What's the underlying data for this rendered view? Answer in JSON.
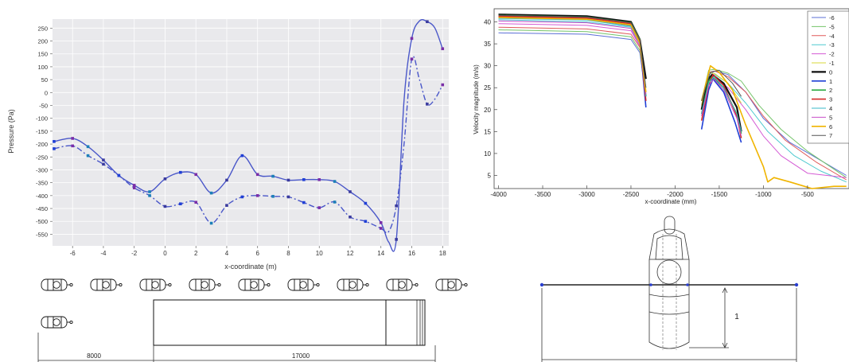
{
  "chart_data": [
    {
      "type": "line",
      "xlabel": "x-coordinate (m)",
      "ylabel": "Pressure (Pa)",
      "xlim": [
        -7.3,
        18.4
      ],
      "ylim": [
        -595,
        285
      ],
      "xticks": [
        "-6",
        "-4",
        "-2",
        "0",
        "2",
        "4",
        "6",
        "8",
        "10",
        "12",
        "14",
        "16",
        "18"
      ],
      "yticks": [
        "250",
        "200",
        "150",
        "100",
        "50",
        "0",
        "-50",
        "-100",
        "-150",
        "-200",
        "-250",
        "-300",
        "-350",
        "-400",
        "-450",
        "-500",
        "-550"
      ],
      "grid": true,
      "series": [
        {
          "style": "solid",
          "color": "#4a57c9",
          "x": [
            -7.2,
            -6,
            -5,
            -4,
            -3,
            -2,
            -1,
            0,
            1,
            2,
            3,
            4,
            5,
            6,
            7,
            8,
            9,
            10,
            11,
            12,
            13,
            14,
            14.5,
            15,
            15.5,
            16,
            16.5,
            17,
            17.5,
            18
          ],
          "y": [
            -190,
            -178,
            -210,
            -262,
            -322,
            -360,
            -385,
            -335,
            -310,
            -318,
            -390,
            -340,
            -245,
            -318,
            -325,
            -340,
            -338,
            -338,
            -345,
            -385,
            -430,
            -505,
            -580,
            -570,
            -30,
            210,
            278,
            275,
            250,
            170
          ]
        },
        {
          "style": "dashdot",
          "color": "#4a57c9",
          "x": [
            -7.2,
            -6,
            -5,
            -4,
            -3,
            -2,
            -1,
            0,
            1,
            2,
            3,
            4,
            5,
            6,
            7,
            8,
            9,
            10,
            11,
            12,
            13,
            14,
            14.5,
            15,
            15.5,
            16,
            16.5,
            17,
            17.5,
            18
          ],
          "y": [
            -218,
            -207,
            -245,
            -278,
            -322,
            -370,
            -400,
            -442,
            -432,
            -426,
            -507,
            -438,
            -405,
            -400,
            -403,
            -405,
            -427,
            -447,
            -425,
            -483,
            -500,
            -527,
            -540,
            -440,
            -200,
            130,
            50,
            -45,
            -25,
            30
          ]
        }
      ]
    },
    {
      "type": "line",
      "xlabel": "x-coordinate (mm)",
      "ylabel": "Velocity magnitude (m/s)",
      "xlim": [
        -4050,
        -30
      ],
      "ylim": [
        2,
        43
      ],
      "xticks": [
        "-4000",
        "-3500",
        "-3000",
        "-2500",
        "-2000",
        "-1500",
        "-1000",
        "-500",
        "0"
      ],
      "yticks": [
        "40",
        "35",
        "30",
        "25",
        "20",
        "15",
        "10",
        "5"
      ],
      "legend": {
        "position": "right",
        "entries": [
          "-6",
          "-5",
          "-4",
          "-3",
          "-2",
          "-1",
          "0",
          "1",
          "2",
          "3",
          "4",
          "5",
          "6",
          "7"
        ]
      },
      "series": [
        {
          "name": "-6",
          "color": "#5b6fd6",
          "width": 1,
          "left": [
            [
              -4000,
              37.5
            ],
            [
              -3000,
              37.2
            ],
            [
              -2500,
              36.0
            ],
            [
              -2400,
              33.0
            ],
            [
              -2330,
              23.0
            ]
          ],
          "right": [
            [
              -1700,
              21.0
            ],
            [
              -1620,
              28.0
            ],
            [
              -1550,
              28.8
            ],
            [
              -1400,
              28.0
            ],
            [
              -1200,
              24.0
            ],
            [
              -1000,
              18.0
            ],
            [
              -700,
              12.5
            ],
            [
              -400,
              9.0
            ],
            [
              -60,
              5.0
            ]
          ]
        },
        {
          "name": "-5",
          "color": "#74c46a",
          "width": 1,
          "left": [
            [
              -4000,
              38.2
            ],
            [
              -3000,
              37.8
            ],
            [
              -2500,
              36.6
            ],
            [
              -2400,
              33.5
            ],
            [
              -2330,
              24.0
            ]
          ],
          "right": [
            [
              -1700,
              22.0
            ],
            [
              -1620,
              29.0
            ],
            [
              -1550,
              29.2
            ],
            [
              -1400,
              28.3
            ],
            [
              -1250,
              26.5
            ],
            [
              -1050,
              21.0
            ],
            [
              -800,
              15.5
            ],
            [
              -500,
              10.5
            ],
            [
              -60,
              4.5
            ]
          ]
        },
        {
          "name": "-4",
          "color": "#e05a5a",
          "width": 1,
          "left": [
            [
              -4000,
              38.8
            ],
            [
              -3000,
              38.4
            ],
            [
              -2500,
              37.2
            ],
            [
              -2400,
              34.2
            ],
            [
              -2330,
              24.0
            ]
          ],
          "right": [
            [
              -1700,
              21.0
            ],
            [
              -1620,
              28.5
            ],
            [
              -1550,
              28.8
            ],
            [
              -1400,
              27.5
            ],
            [
              -1200,
              24.0
            ],
            [
              -1000,
              18.5
            ],
            [
              -750,
              13.0
            ],
            [
              -400,
              8.0
            ],
            [
              -60,
              4.0
            ]
          ]
        },
        {
          "name": "-3",
          "color": "#4dc9cf",
          "width": 1,
          "left": [
            [
              -4000,
              40.5
            ],
            [
              -3000,
              40.0
            ],
            [
              -2500,
              38.8
            ],
            [
              -2400,
              35.0
            ],
            [
              -2330,
              25.0
            ]
          ],
          "right": [
            [
              -1700,
              20.0
            ],
            [
              -1620,
              27.5
            ],
            [
              -1550,
              28.0
            ],
            [
              -1400,
              26.0
            ],
            [
              -1200,
              21.5
            ],
            [
              -950,
              15.0
            ],
            [
              -650,
              9.5
            ],
            [
              -350,
              6.0
            ],
            [
              -60,
              3.5
            ]
          ]
        },
        {
          "name": "-2",
          "color": "#d45ad4",
          "width": 1,
          "left": [
            [
              -4000,
              39.6
            ],
            [
              -3000,
              39.2
            ],
            [
              -2500,
              38.0
            ],
            [
              -2400,
              34.5
            ],
            [
              -2330,
              24.0
            ]
          ],
          "right": [
            [
              -1700,
              19.0
            ],
            [
              -1620,
              26.5
            ],
            [
              -1550,
              27.0
            ],
            [
              -1400,
              25.0
            ],
            [
              -1200,
              20.0
            ],
            [
              -1000,
              14.0
            ],
            [
              -800,
              9.5
            ],
            [
              -500,
              5.5
            ],
            [
              -60,
              4.5
            ]
          ]
        },
        {
          "name": "-1",
          "color": "#d8d83a",
          "width": 1,
          "left": [
            [
              -4000,
              41.2
            ],
            [
              -3000,
              40.8
            ],
            [
              -2500,
              39.5
            ],
            [
              -2400,
              35.5
            ],
            [
              -2330,
              24.0
            ]
          ],
          "right": [
            [
              -1700,
              21.0
            ],
            [
              -1620,
              28.5
            ],
            [
              -1550,
              28.2
            ],
            [
              -1400,
              26.0
            ],
            [
              -1250,
              21.5
            ]
          ]
        },
        {
          "name": "0",
          "color": "#111111",
          "width": 2.2,
          "left": [
            [
              -4000,
              41.7
            ],
            [
              -3000,
              41.3
            ],
            [
              -2500,
              40.0
            ],
            [
              -2400,
              36.0
            ],
            [
              -2330,
              27.0
            ]
          ],
          "right": [
            [
              -1700,
              20.0
            ],
            [
              -1620,
              27.0
            ],
            [
              -1580,
              28.0
            ],
            [
              -1450,
              26.0
            ],
            [
              -1300,
              20.5
            ],
            [
              -1250,
              15.0
            ]
          ]
        },
        {
          "name": "1",
          "color": "#1f3fd6",
          "width": 1.6,
          "left": [
            [
              -4000,
              41.0
            ],
            [
              -3000,
              40.6
            ],
            [
              -2500,
              39.2
            ],
            [
              -2400,
              35.5
            ],
            [
              -2330,
              20.5
            ]
          ],
          "right": [
            [
              -1700,
              15.5
            ],
            [
              -1620,
              24.5
            ],
            [
              -1570,
              27.0
            ],
            [
              -1450,
              24.0
            ],
            [
              -1320,
              17.0
            ],
            [
              -1250,
              12.5
            ]
          ]
        },
        {
          "name": "2",
          "color": "#2eab45",
          "width": 1.6,
          "left": [
            [
              -4000,
              41.5
            ],
            [
              -3000,
              41.1
            ],
            [
              -2500,
              39.8
            ],
            [
              -2400,
              36.0
            ],
            [
              -2330,
              23.0
            ]
          ],
          "right": [
            [
              -1700,
              19.0
            ],
            [
              -1620,
              26.5
            ],
            [
              -1580,
              27.5
            ],
            [
              -1450,
              25.0
            ],
            [
              -1300,
              19.0
            ],
            [
              -1250,
              14.5
            ]
          ]
        },
        {
          "name": "3",
          "color": "#d42a2a",
          "width": 1.6,
          "left": [
            [
              -4000,
              41.3
            ],
            [
              -3000,
              40.9
            ],
            [
              -2500,
              39.6
            ],
            [
              -2400,
              35.8
            ],
            [
              -2330,
              22.0
            ]
          ],
          "right": [
            [
              -1700,
              17.5
            ],
            [
              -1620,
              25.5
            ],
            [
              -1570,
              28.0
            ],
            [
              -1450,
              25.5
            ],
            [
              -1300,
              18.5
            ],
            [
              -1250,
              13.5
            ]
          ]
        },
        {
          "name": "4",
          "color": "#3ab8c9",
          "width": 1,
          "left": [
            [
              -4000,
              40.8
            ],
            [
              -3000,
              40.4
            ],
            [
              -2500,
              39.0
            ],
            [
              -2400,
              35.0
            ],
            [
              -2330,
              23.0
            ]
          ],
          "right": [
            [
              -1700,
              19.0
            ],
            [
              -1620,
              26.0
            ],
            [
              -1560,
              27.5
            ],
            [
              -1450,
              25.0
            ],
            [
              -1300,
              19.0
            ],
            [
              -1250,
              15.0
            ]
          ]
        },
        {
          "name": "5",
          "color": "#c94fc9",
          "width": 1,
          "left": [
            [
              -4000,
              40.2
            ],
            [
              -3000,
              39.8
            ],
            [
              -2500,
              38.5
            ],
            [
              -2400,
              34.5
            ],
            [
              -2330,
              23.5
            ]
          ],
          "right": [
            [
              -1700,
              18.5
            ],
            [
              -1620,
              25.5
            ],
            [
              -1560,
              27.0
            ],
            [
              -1450,
              24.5
            ],
            [
              -1300,
              18.0
            ],
            [
              -1250,
              14.0
            ]
          ]
        },
        {
          "name": "6",
          "color": "#f0b400",
          "width": 1.6,
          "left": [
            [
              -4000,
              41.0
            ],
            [
              -3000,
              40.6
            ],
            [
              -2500,
              39.3
            ],
            [
              -2400,
              35.2
            ],
            [
              -2330,
              24.0
            ]
          ],
          "right": [
            [
              -1700,
              22.0
            ],
            [
              -1600,
              30.0
            ],
            [
              -1500,
              28.5
            ],
            [
              -1350,
              24.5
            ],
            [
              -1200,
              16.5
            ],
            [
              -1000,
              7.0
            ],
            [
              -950,
              3.5
            ],
            [
              -880,
              4.5
            ],
            [
              -700,
              3.5
            ],
            [
              -450,
              2.0
            ],
            [
              -200,
              2.5
            ],
            [
              -60,
              2.5
            ]
          ]
        },
        {
          "name": "7",
          "color": "#555555",
          "width": 1,
          "left": [
            [
              -4000,
              41.5
            ],
            [
              -3000,
              41.1
            ],
            [
              -2500,
              39.8
            ],
            [
              -2400,
              35.8
            ],
            [
              -2330,
              25.0
            ]
          ],
          "right": [
            [
              -1700,
              22.0
            ],
            [
              -1600,
              28.5
            ],
            [
              -1500,
              29.0
            ],
            [
              -1350,
              26.0
            ],
            [
              -1250,
              23.0
            ]
          ]
        }
      ]
    }
  ],
  "drawings": {
    "dim_8000": "8000",
    "dim_17000": "17000",
    "dim_1": "1"
  }
}
